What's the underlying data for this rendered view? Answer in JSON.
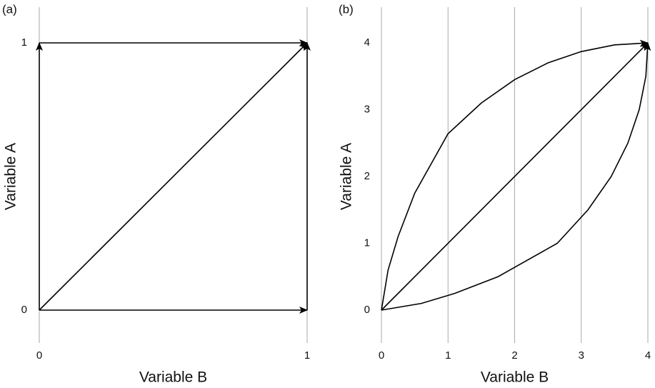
{
  "chart_data": [
    {
      "type": "line",
      "panel_label": "(a)",
      "xlabel": "Variable B",
      "ylabel": "Variable A",
      "xlim": [
        0,
        1
      ],
      "ylim": [
        0,
        1
      ],
      "xticks": [
        0,
        1
      ],
      "yticks": [
        0,
        1
      ],
      "grid": true,
      "arrows": true,
      "series": [
        {
          "color": "#000000",
          "x": [
            0,
            1
          ],
          "values": [
            0,
            0
          ]
        },
        {
          "color": "#000000",
          "x": [
            0,
            0
          ],
          "values": [
            0,
            1
          ]
        },
        {
          "color": "#000000",
          "x": [
            0,
            1
          ],
          "values": [
            0,
            1
          ]
        },
        {
          "color": "#000000",
          "x": [
            0,
            1
          ],
          "values": [
            1,
            1
          ]
        },
        {
          "color": "#000000",
          "x": [
            1,
            1
          ],
          "values": [
            0,
            1
          ]
        }
      ]
    },
    {
      "type": "line",
      "panel_label": "(b)",
      "xlabel": "Variable B",
      "ylabel": "Variable A",
      "xlim": [
        0,
        4
      ],
      "ylim": [
        0,
        4
      ],
      "xticks": [
        0,
        1,
        2,
        3,
        4
      ],
      "yticks": [
        0,
        1,
        2,
        3,
        4
      ],
      "grid": true,
      "arrows": true,
      "series": [
        {
          "color": "#000000",
          "x": [
            0,
            4
          ],
          "values": [
            0,
            4
          ]
        },
        {
          "color": "#000000",
          "x": [
            0,
            0.1,
            0.25,
            0.5,
            1,
            1.5,
            2,
            2.5,
            3,
            3.5,
            4
          ],
          "values": [
            0,
            0.6,
            1.1,
            1.75,
            2.64,
            3.1,
            3.45,
            3.7,
            3.87,
            3.97,
            4
          ]
        },
        {
          "color": "#000000",
          "x": [
            0,
            0.6,
            1.1,
            1.75,
            2.64,
            3.1,
            3.45,
            3.7,
            3.87,
            3.97,
            4
          ],
          "values": [
            0,
            0.1,
            0.25,
            0.5,
            1,
            1.5,
            2,
            2.5,
            3,
            3.5,
            4
          ]
        }
      ]
    }
  ]
}
